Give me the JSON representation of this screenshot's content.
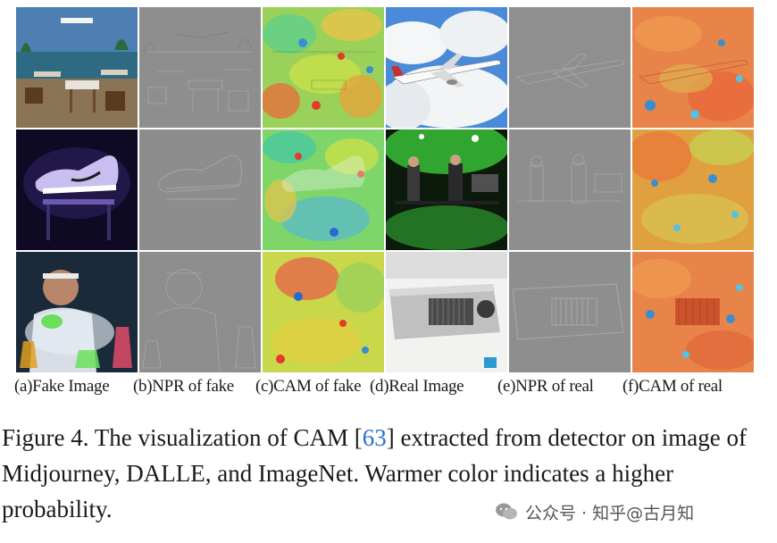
{
  "columns": [
    {
      "label": "(a)Fake Image"
    },
    {
      "label": "(b)NPR of fake"
    },
    {
      "label": "(c)CAM of fake"
    },
    {
      "label": "(d)Real Image"
    },
    {
      "label": "(e)NPR of real"
    },
    {
      "label": "(f)CAM of real"
    }
  ],
  "caption": {
    "prefix": "Figure 4.",
    "text_before_cite": " The visualization of CAM [",
    "cite": "63",
    "text_after_cite": "] extracted from detector on image of Midjourney, DALLE, and ImageNet. Warmer color indicates a higher probability."
  },
  "watermark": {
    "text": "公众号 · 知乎@古月知",
    "logo_icon": "wechat-logo-icon"
  },
  "colors": {
    "citation": "#2a6fd6",
    "npr_gray": "#8e8e8e",
    "cam_warm": "#e8623a",
    "cam_cool": "#4aa0e0"
  }
}
